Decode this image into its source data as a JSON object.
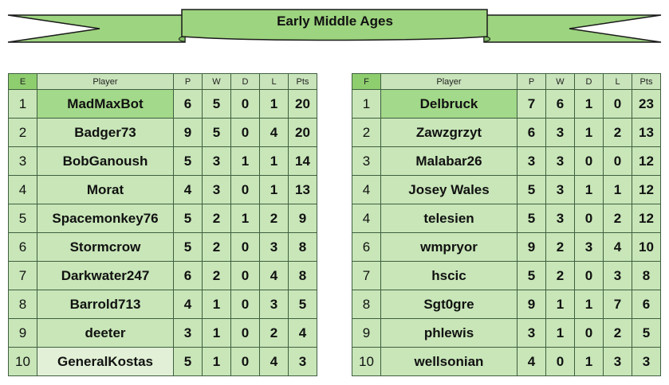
{
  "banner": {
    "title": "Early Middle Ages"
  },
  "columns": [
    "Player",
    "P",
    "W",
    "D",
    "L",
    "Pts"
  ],
  "groups": [
    {
      "label": "E",
      "rows": [
        {
          "rank": "1",
          "player": "MadMaxBot",
          "p": "6",
          "w": "5",
          "d": "0",
          "l": "1",
          "pts": "20"
        },
        {
          "rank": "2",
          "player": "Badger73",
          "p": "9",
          "w": "5",
          "d": "0",
          "l": "4",
          "pts": "20"
        },
        {
          "rank": "3",
          "player": "BobGanoush",
          "p": "5",
          "w": "3",
          "d": "1",
          "l": "1",
          "pts": "14"
        },
        {
          "rank": "4",
          "player": "Morat",
          "p": "4",
          "w": "3",
          "d": "0",
          "l": "1",
          "pts": "13"
        },
        {
          "rank": "5",
          "player": "Spacemonkey76",
          "p": "5",
          "w": "2",
          "d": "1",
          "l": "2",
          "pts": "9"
        },
        {
          "rank": "6",
          "player": "Stormcrow",
          "p": "5",
          "w": "2",
          "d": "0",
          "l": "3",
          "pts": "8"
        },
        {
          "rank": "7",
          "player": "Darkwater247",
          "p": "6",
          "w": "2",
          "d": "0",
          "l": "4",
          "pts": "8"
        },
        {
          "rank": "8",
          "player": "Barrold713",
          "p": "4",
          "w": "1",
          "d": "0",
          "l": "3",
          "pts": "5"
        },
        {
          "rank": "9",
          "player": "deeter",
          "p": "3",
          "w": "1",
          "d": "0",
          "l": "2",
          "pts": "4"
        },
        {
          "rank": "10",
          "player": "GeneralKostas",
          "p": "5",
          "w": "1",
          "d": "0",
          "l": "4",
          "pts": "3"
        }
      ]
    },
    {
      "label": "F",
      "rows": [
        {
          "rank": "1",
          "player": "Delbruck",
          "p": "7",
          "w": "6",
          "d": "1",
          "l": "0",
          "pts": "23"
        },
        {
          "rank": "2",
          "player": "Zawzgrzyt",
          "p": "6",
          "w": "3",
          "d": "1",
          "l": "2",
          "pts": "13"
        },
        {
          "rank": "3",
          "player": "Malabar26",
          "p": "3",
          "w": "3",
          "d": "0",
          "l": "0",
          "pts": "12"
        },
        {
          "rank": "4",
          "player": "Josey Wales",
          "p": "5",
          "w": "3",
          "d": "1",
          "l": "1",
          "pts": "12"
        },
        {
          "rank": "4",
          "player": "telesien",
          "p": "5",
          "w": "3",
          "d": "0",
          "l": "2",
          "pts": "12"
        },
        {
          "rank": "6",
          "player": "wmpryor",
          "p": "9",
          "w": "2",
          "d": "3",
          "l": "4",
          "pts": "10"
        },
        {
          "rank": "7",
          "player": "hscic",
          "p": "5",
          "w": "2",
          "d": "0",
          "l": "3",
          "pts": "8"
        },
        {
          "rank": "8",
          "player": "Sgt0gre",
          "p": "9",
          "w": "1",
          "d": "1",
          "l": "7",
          "pts": "6"
        },
        {
          "rank": "9",
          "player": "phlewis",
          "p": "3",
          "w": "1",
          "d": "0",
          "l": "2",
          "pts": "5"
        },
        {
          "rank": "10",
          "player": "wellsonian",
          "p": "4",
          "w": "0",
          "d": "1",
          "l": "3",
          "pts": "3"
        }
      ]
    }
  ],
  "colors": {
    "header_group": "#8fce6f",
    "header": "#c9e4bb",
    "cell": "#c8e6b8",
    "leader_cell": "#a3d98a",
    "faded_cell": "#e1f0d6",
    "border": "#3f5f3f",
    "banner_fill": "#9dd47f"
  }
}
